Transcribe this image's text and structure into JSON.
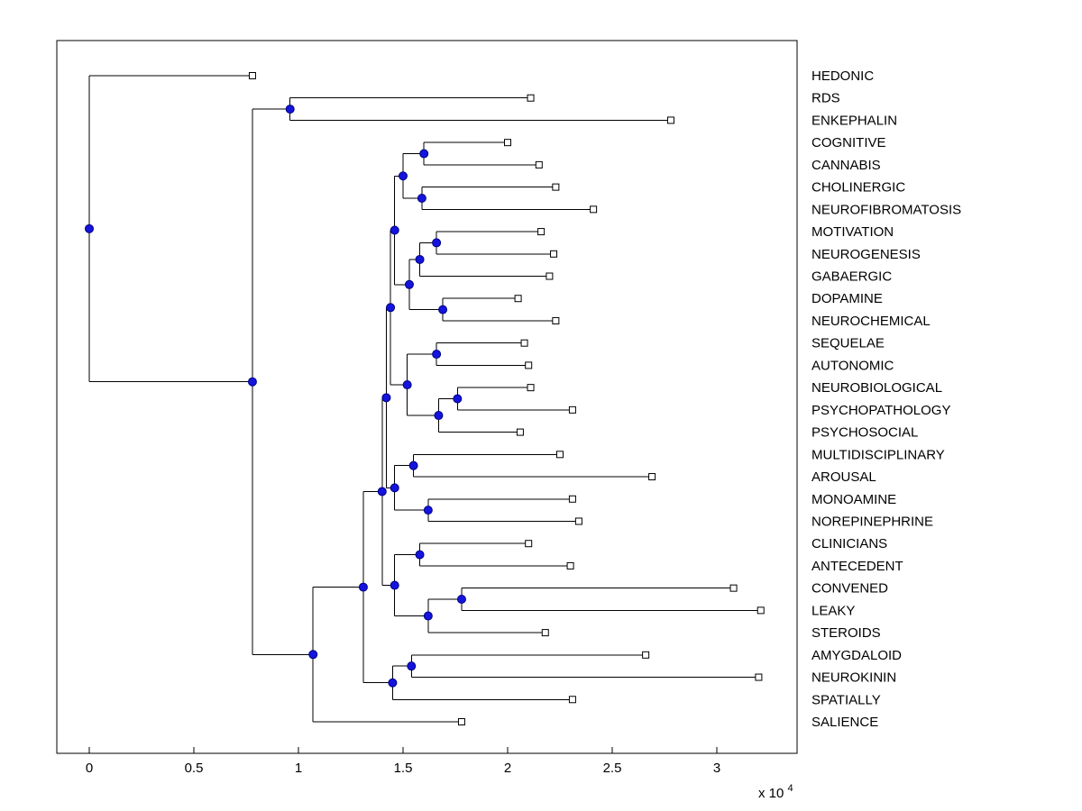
{
  "figure": {
    "bg": "#ffffff",
    "axis_color": "#000000",
    "branch_color": "#000000",
    "node_fill": "#1414dd",
    "node_edge": "#000080",
    "leaf_marker_fill": "#ffffff",
    "leaf_marker_edge": "#000000",
    "text_color": "#000000"
  },
  "chart_data": {
    "type": "dendrogram",
    "orientation": "horizontal-left-to-right",
    "grid": false,
    "legend": false,
    "internal_node_marker": "filled-blue-circle",
    "leaf_node_marker": "open-white-square",
    "x_axis": {
      "ticks": [
        0,
        0.5,
        1,
        1.5,
        2,
        2.5,
        3
      ],
      "tick_labels": [
        "0",
        "0.5",
        "1",
        "1.5",
        "2",
        "2.5",
        "3"
      ],
      "multiplier_label": "x 10",
      "multiplier_exponent": "4",
      "unit_multiplier": 10000,
      "range": [
        -0.155,
        3.385
      ]
    },
    "leaves": [
      {
        "name": "HEDONIC",
        "value": 0.78
      },
      {
        "name": "RDS",
        "value": 2.11
      },
      {
        "name": "ENKEPHALIN",
        "value": 2.78
      },
      {
        "name": "COGNITIVE",
        "value": 2.0
      },
      {
        "name": "CANNABIS",
        "value": 2.15
      },
      {
        "name": "CHOLINERGIC",
        "value": 2.23
      },
      {
        "name": "NEUROFIBROMATOSIS",
        "value": 2.41
      },
      {
        "name": "MOTIVATION",
        "value": 2.16
      },
      {
        "name": "NEUROGENESIS",
        "value": 2.22
      },
      {
        "name": "GABAERGIC",
        "value": 2.2
      },
      {
        "name": "DOPAMINE",
        "value": 2.05
      },
      {
        "name": "NEUROCHEMICAL",
        "value": 2.23
      },
      {
        "name": "SEQUELAE",
        "value": 2.08
      },
      {
        "name": "AUTONOMIC",
        "value": 2.1
      },
      {
        "name": "NEUROBIOLOGICAL",
        "value": 2.11
      },
      {
        "name": "PSYCHOPATHOLOGY",
        "value": 2.31
      },
      {
        "name": "PSYCHOSOCIAL",
        "value": 2.06
      },
      {
        "name": "MULTIDISCIPLINARY",
        "value": 2.25
      },
      {
        "name": "AROUSAL",
        "value": 2.69
      },
      {
        "name": "MONOAMINE",
        "value": 2.31
      },
      {
        "name": "NOREPINEPHRINE",
        "value": 2.34
      },
      {
        "name": "CLINICIANS",
        "value": 2.1
      },
      {
        "name": "ANTECEDENT",
        "value": 2.3
      },
      {
        "name": "CONVENED",
        "value": 3.08
      },
      {
        "name": "LEAKY",
        "value": 3.21
      },
      {
        "name": "STEROIDS",
        "value": 2.18
      },
      {
        "name": "AMYGDALOID",
        "value": 2.66
      },
      {
        "name": "NEUROKININ",
        "value": 3.2
      },
      {
        "name": "SPATIALLY",
        "value": 2.31
      },
      {
        "name": "SALIENCE",
        "value": 1.78
      }
    ],
    "tree": {
      "v": 0.0,
      "c": [
        {
          "leaf": "HEDONIC"
        },
        {
          "v": 0.78,
          "c": [
            {
              "v": 0.96,
              "c": [
                {
                  "leaf": "RDS"
                },
                {
                  "leaf": "ENKEPHALIN"
                }
              ]
            },
            {
              "v": 1.07,
              "c": [
                {
                  "v": 1.31,
                  "c": [
                    {
                      "v": 1.4,
                      "c": [
                        {
                          "v": 1.42,
                          "c": [
                            {
                              "v": 1.44,
                              "c": [
                                {
                                  "v": 1.46,
                                  "c": [
                                    {
                                      "v": 1.5,
                                      "c": [
                                        {
                                          "v": 1.6,
                                          "c": [
                                            {
                                              "leaf": "COGNITIVE"
                                            },
                                            {
                                              "leaf": "CANNABIS"
                                            }
                                          ]
                                        },
                                        {
                                          "v": 1.59,
                                          "c": [
                                            {
                                              "leaf": "CHOLINERGIC"
                                            },
                                            {
                                              "leaf": "NEUROFIBROMATOSIS"
                                            }
                                          ]
                                        }
                                      ]
                                    },
                                    {
                                      "v": 1.53,
                                      "c": [
                                        {
                                          "v": 1.58,
                                          "c": [
                                            {
                                              "v": 1.66,
                                              "c": [
                                                {
                                                  "leaf": "MOTIVATION"
                                                },
                                                {
                                                  "leaf": "NEUROGENESIS"
                                                }
                                              ]
                                            },
                                            {
                                              "leaf": "GABAERGIC"
                                            }
                                          ]
                                        },
                                        {
                                          "v": 1.69,
                                          "c": [
                                            {
                                              "leaf": "DOPAMINE"
                                            },
                                            {
                                              "leaf": "NEUROCHEMICAL"
                                            }
                                          ]
                                        }
                                      ]
                                    }
                                  ]
                                },
                                {
                                  "v": 1.52,
                                  "c": [
                                    {
                                      "v": 1.66,
                                      "c": [
                                        {
                                          "leaf": "SEQUELAE"
                                        },
                                        {
                                          "leaf": "AUTONOMIC"
                                        }
                                      ]
                                    },
                                    {
                                      "v": 1.67,
                                      "c": [
                                        {
                                          "v": 1.76,
                                          "c": [
                                            {
                                              "leaf": "NEUROBIOLOGICAL"
                                            },
                                            {
                                              "leaf": "PSYCHOPATHOLOGY"
                                            }
                                          ]
                                        },
                                        {
                                          "leaf": "PSYCHOSOCIAL"
                                        }
                                      ]
                                    }
                                  ]
                                }
                              ]
                            },
                            {
                              "v": 1.46,
                              "c": [
                                {
                                  "v": 1.55,
                                  "c": [
                                    {
                                      "leaf": "MULTIDISCIPLINARY"
                                    },
                                    {
                                      "leaf": "AROUSAL"
                                    }
                                  ]
                                },
                                {
                                  "v": 1.62,
                                  "c": [
                                    {
                                      "leaf": "MONOAMINE"
                                    },
                                    {
                                      "leaf": "NOREPINEPHRINE"
                                    }
                                  ]
                                }
                              ]
                            }
                          ]
                        },
                        {
                          "v": 1.46,
                          "c": [
                            {
                              "v": 1.58,
                              "c": [
                                {
                                  "leaf": "CLINICIANS"
                                },
                                {
                                  "leaf": "ANTECEDENT"
                                }
                              ]
                            },
                            {
                              "v": 1.62,
                              "c": [
                                {
                                  "v": 1.78,
                                  "c": [
                                    {
                                      "leaf": "CONVENED"
                                    },
                                    {
                                      "leaf": "LEAKY"
                                    }
                                  ]
                                },
                                {
                                  "leaf": "STEROIDS"
                                }
                              ]
                            }
                          ]
                        }
                      ]
                    },
                    {
                      "v": 1.45,
                      "c": [
                        {
                          "v": 1.54,
                          "c": [
                            {
                              "leaf": "AMYGDALOID"
                            },
                            {
                              "leaf": "NEUROKININ"
                            }
                          ]
                        },
                        {
                          "leaf": "SPATIALLY"
                        }
                      ]
                    }
                  ]
                },
                {
                  "leaf": "SALIENCE"
                }
              ]
            }
          ]
        }
      ]
    }
  }
}
